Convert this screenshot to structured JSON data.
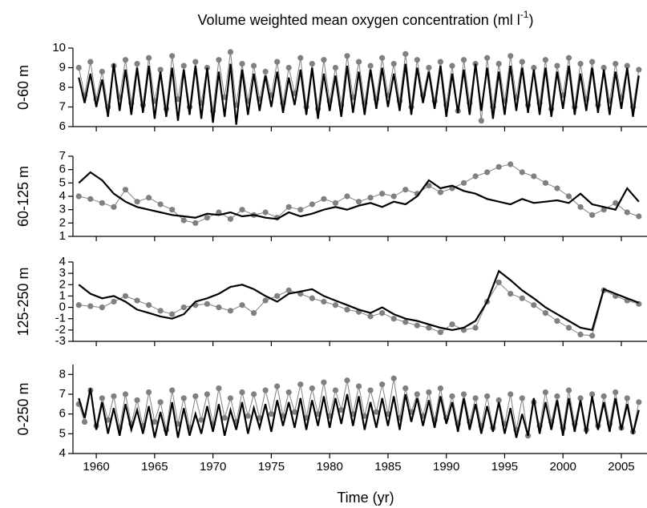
{
  "chart_data": [
    {
      "type": "line",
      "title": [
        "Volume weighted mean oxygen concentration (ml l",
        "-1",
        ")"
      ],
      "ylabel": "0-60 m",
      "xlim": [
        1958,
        2007.2
      ],
      "ylim": [
        6,
        10
      ],
      "yticks": [
        6,
        7,
        8,
        9,
        10
      ],
      "x": [
        1958.5,
        1959,
        1959.5,
        1960,
        1960.5,
        1961,
        1961.5,
        1962,
        1962.5,
        1963,
        1963.5,
        1964,
        1964.5,
        1965,
        1965.5,
        1966,
        1966.5,
        1967,
        1967.5,
        1968,
        1968.5,
        1969,
        1969.5,
        1970,
        1970.5,
        1971,
        1971.5,
        1972,
        1972.5,
        1973,
        1973.5,
        1974,
        1974.5,
        1975,
        1975.5,
        1976,
        1976.5,
        1977,
        1977.5,
        1978,
        1978.5,
        1979,
        1979.5,
        1980,
        1980.5,
        1981,
        1981.5,
        1982,
        1982.5,
        1983,
        1983.5,
        1984,
        1984.5,
        1985,
        1985.5,
        1986,
        1986.5,
        1987,
        1987.5,
        1988,
        1988.5,
        1989,
        1989.5,
        1990,
        1990.5,
        1991,
        1991.5,
        1992,
        1992.5,
        1993,
        1993.5,
        1994,
        1994.5,
        1995,
        1995.5,
        1996,
        1996.5,
        1997,
        1997.5,
        1998,
        1998.5,
        1999,
        1999.5,
        2000,
        2000.5,
        2001,
        2001.5,
        2002,
        2002.5,
        2003,
        2003.5,
        2004,
        2004.5,
        2005,
        2005.5,
        2006,
        2006.5
      ],
      "series": [
        {
          "color": "#808080",
          "marker": true,
          "values": [
            9.0,
            7.6,
            9.3,
            7.4,
            8.8,
            7.0,
            9.1,
            7.5,
            9.4,
            7.2,
            9.2,
            7.1,
            9.5,
            7.3,
            8.9,
            6.9,
            9.6,
            7.4,
            9.1,
            7.0,
            9.3,
            7.2,
            9.0,
            6.8,
            9.4,
            7.5,
            9.8,
            7.1,
            9.2,
            7.3,
            9.1,
            7.4,
            8.8,
            7.6,
            9.3,
            7.2,
            9.0,
            7.7,
            9.5,
            7.0,
            9.2,
            6.9,
            9.4,
            7.3,
            9.0,
            7.1,
            9.6,
            7.5,
            9.3,
            7.2,
            9.1,
            7.4,
            9.5,
            7.6,
            9.2,
            7.3,
            9.7,
            7.0,
            9.4,
            7.6,
            9.0,
            7.3,
            9.3,
            7.1,
            9.1,
            6.8,
            9.4,
            7.2,
            9.2,
            6.3,
            9.5,
            7.0,
            9.2,
            7.3,
            9.6,
            7.5,
            9.3,
            7.1,
            9.0,
            7.2,
            9.4,
            6.9,
            9.1,
            7.6,
            9.5,
            7.0,
            9.2,
            7.4,
            9.3,
            7.1,
            9.0,
            7.3,
            9.2,
            7.5,
            9.1,
            7.0,
            8.9
          ]
        },
        {
          "color": "#000000",
          "marker": false,
          "values": [
            8.5,
            7.2,
            8.7,
            7.0,
            8.4,
            6.5,
            9.2,
            6.8,
            8.9,
            6.6,
            9.0,
            6.7,
            9.1,
            6.4,
            8.8,
            6.5,
            9.0,
            6.3,
            8.9,
            6.6,
            9.1,
            6.4,
            9.0,
            6.2,
            8.8,
            6.5,
            9.2,
            6.1,
            8.9,
            6.6,
            8.7,
            6.8,
            8.6,
            7.0,
            8.8,
            6.7,
            8.5,
            7.1,
            8.9,
            6.6,
            9.0,
            6.4,
            8.7,
            6.8,
            8.6,
            6.5,
            9.1,
            6.7,
            8.8,
            6.6,
            8.9,
            6.9,
            9.0,
            7.0,
            8.7,
            6.8,
            9.2,
            6.6,
            9.0,
            7.2,
            8.8,
            6.9,
            9.1,
            6.5,
            8.7,
            6.7,
            8.9,
            6.6,
            9.2,
            6.8,
            9.0,
            6.4,
            8.8,
            6.6,
            9.1,
            6.8,
            9.0,
            6.7,
            8.9,
            6.6,
            9.0,
            6.5,
            8.8,
            6.9,
            9.1,
            6.6,
            8.7,
            6.8,
            9.0,
            6.7,
            8.9,
            6.6,
            8.8,
            6.9,
            9.0,
            6.5,
            8.6
          ]
        }
      ]
    },
    {
      "type": "line",
      "ylabel": "60-125 m",
      "xlim": [
        1958,
        2007.2
      ],
      "ylim": [
        1,
        7
      ],
      "yticks": [
        1,
        2,
        3,
        4,
        5,
        6,
        7
      ],
      "x": [
        1958.5,
        1959.5,
        1960.5,
        1961.5,
        1962.5,
        1963.5,
        1964.5,
        1965.5,
        1966.5,
        1967.5,
        1968.5,
        1969.5,
        1970.5,
        1971.5,
        1972.5,
        1973.5,
        1974.5,
        1975.5,
        1976.5,
        1977.5,
        1978.5,
        1979.5,
        1980.5,
        1981.5,
        1982.5,
        1983.5,
        1984.5,
        1985.5,
        1986.5,
        1987.5,
        1988.5,
        1989.5,
        1990.5,
        1991.5,
        1992.5,
        1993.5,
        1994.5,
        1995.5,
        1996.5,
        1997.5,
        1998.5,
        1999.5,
        2000.5,
        2001.5,
        2002.5,
        2003.5,
        2004.5,
        2005.5,
        2006.5
      ],
      "series": [
        {
          "color": "#808080",
          "marker": true,
          "values": [
            4.0,
            3.8,
            3.5,
            3.2,
            4.5,
            3.6,
            3.9,
            3.4,
            3.0,
            2.2,
            2.0,
            2.4,
            2.8,
            2.3,
            3.0,
            2.6,
            2.8,
            2.4,
            3.2,
            3.0,
            3.4,
            3.8,
            3.5,
            4.0,
            3.6,
            3.9,
            4.2,
            4.0,
            4.5,
            4.2,
            4.8,
            4.3,
            4.6,
            5.0,
            5.5,
            5.8,
            6.2,
            6.4,
            5.8,
            5.5,
            5.0,
            4.6,
            4.0,
            3.2,
            2.6,
            3.0,
            3.5,
            2.8,
            2.5
          ]
        },
        {
          "color": "#000000",
          "marker": false,
          "values": [
            5.0,
            5.8,
            5.2,
            4.2,
            3.6,
            3.2,
            3.0,
            2.8,
            2.6,
            2.5,
            2.4,
            2.7,
            2.6,
            2.8,
            2.5,
            2.6,
            2.4,
            2.3,
            2.8,
            2.5,
            2.7,
            3.0,
            3.2,
            3.0,
            3.3,
            3.5,
            3.2,
            3.6,
            3.4,
            4.0,
            5.2,
            4.6,
            4.8,
            4.4,
            4.2,
            3.8,
            3.6,
            3.4,
            3.8,
            3.5,
            3.6,
            3.7,
            3.5,
            4.2,
            3.4,
            3.2,
            3.0,
            4.6,
            3.6
          ]
        }
      ]
    },
    {
      "type": "line",
      "ylabel": "125-250 m",
      "xlim": [
        1958,
        2007.2
      ],
      "ylim": [
        -3,
        4
      ],
      "yticks": [
        -3,
        -2,
        -1,
        0,
        1,
        2,
        3,
        4
      ],
      "x": [
        1958.5,
        1959.5,
        1960.5,
        1961.5,
        1962.5,
        1963.5,
        1964.5,
        1965.5,
        1966.5,
        1967.5,
        1968.5,
        1969.5,
        1970.5,
        1971.5,
        1972.5,
        1973.5,
        1974.5,
        1975.5,
        1976.5,
        1977.5,
        1978.5,
        1979.5,
        1980.5,
        1981.5,
        1982.5,
        1983.5,
        1984.5,
        1985.5,
        1986.5,
        1987.5,
        1988.5,
        1989.5,
        1990.5,
        1991.5,
        1992.5,
        1993.5,
        1994.5,
        1995.5,
        1996.5,
        1997.5,
        1998.5,
        1999.5,
        2000.5,
        2001.5,
        2002.5,
        2003.5,
        2004.5,
        2005.5,
        2006.5
      ],
      "series": [
        {
          "color": "#808080",
          "marker": true,
          "values": [
            0.2,
            0.1,
            0.0,
            0.5,
            1.0,
            0.6,
            0.2,
            -0.3,
            -0.6,
            0.0,
            0.2,
            0.3,
            0.0,
            -0.3,
            0.2,
            -0.5,
            0.6,
            1.0,
            1.5,
            1.2,
            0.8,
            0.5,
            0.2,
            -0.2,
            -0.4,
            -0.8,
            -0.5,
            -1.0,
            -1.3,
            -1.6,
            -1.8,
            -2.2,
            -1.5,
            -2.0,
            -1.8,
            0.5,
            2.2,
            1.2,
            0.8,
            0.2,
            -0.5,
            -1.2,
            -1.8,
            -2.4,
            -2.5,
            1.5,
            1.0,
            0.6,
            0.3
          ]
        },
        {
          "color": "#000000",
          "marker": false,
          "values": [
            2.0,
            1.2,
            0.8,
            1.0,
            0.5,
            -0.2,
            -0.5,
            -0.8,
            -1.0,
            -0.6,
            0.5,
            0.8,
            1.2,
            1.8,
            2.0,
            1.6,
            1.0,
            0.5,
            1.2,
            1.4,
            1.6,
            1.0,
            0.6,
            0.2,
            -0.2,
            -0.5,
            0.0,
            -0.6,
            -1.0,
            -1.2,
            -1.5,
            -1.8,
            -2.0,
            -1.8,
            -1.2,
            0.5,
            3.2,
            2.4,
            1.5,
            0.8,
            0.0,
            -0.6,
            -1.2,
            -1.8,
            -2.0,
            1.6,
            1.2,
            0.8,
            0.4
          ]
        }
      ]
    },
    {
      "type": "line",
      "ylabel": "0-250 m",
      "xlabel": "Time (yr)",
      "xlim": [
        1958,
        2007.2
      ],
      "xticks": [
        1960,
        1965,
        1970,
        1975,
        1980,
        1985,
        1990,
        1995,
        2000,
        2005
      ],
      "ylim": [
        4,
        8.5
      ],
      "yticks": [
        4,
        5,
        6,
        7,
        8
      ],
      "x": [
        1958.5,
        1959,
        1959.5,
        1960,
        1960.5,
        1961,
        1961.5,
        1962,
        1962.5,
        1963,
        1963.5,
        1964,
        1964.5,
        1965,
        1965.5,
        1966,
        1966.5,
        1967,
        1967.5,
        1968,
        1968.5,
        1969,
        1969.5,
        1970,
        1970.5,
        1971,
        1971.5,
        1972,
        1972.5,
        1973,
        1973.5,
        1974,
        1974.5,
        1975,
        1975.5,
        1976,
        1976.5,
        1977,
        1977.5,
        1978,
        1978.5,
        1979,
        1979.5,
        1980,
        1980.5,
        1981,
        1981.5,
        1982,
        1982.5,
        1983,
        1983.5,
        1984,
        1984.5,
        1985,
        1985.5,
        1986,
        1986.5,
        1987,
        1987.5,
        1988,
        1988.5,
        1989,
        1989.5,
        1990,
        1990.5,
        1991,
        1991.5,
        1992,
        1992.5,
        1993,
        1993.5,
        1994,
        1994.5,
        1995,
        1995.5,
        1996,
        1996.5,
        1997,
        1997.5,
        1998,
        1998.5,
        1999,
        1999.5,
        2000,
        2000.5,
        2001,
        2001.5,
        2002,
        2002.5,
        2003,
        2003.5,
        2004,
        2004.5,
        2005,
        2005.5,
        2006,
        2006.5
      ],
      "series": [
        {
          "color": "#808080",
          "marker": true,
          "values": [
            6.5,
            5.6,
            7.2,
            5.4,
            6.8,
            5.7,
            6.9,
            5.3,
            7.0,
            5.5,
            6.7,
            5.4,
            7.1,
            5.6,
            6.6,
            5.2,
            7.2,
            5.5,
            6.8,
            5.3,
            6.9,
            5.7,
            7.0,
            5.5,
            7.3,
            5.8,
            6.8,
            5.6,
            7.1,
            5.9,
            7.0,
            5.8,
            7.2,
            6.0,
            7.4,
            5.9,
            7.1,
            6.1,
            7.5,
            5.8,
            7.3,
            6.0,
            7.6,
            5.9,
            7.2,
            6.2,
            7.7,
            6.0,
            7.4,
            5.9,
            7.2,
            6.1,
            7.5,
            6.0,
            7.8,
            5.8,
            7.3,
            6.1,
            7.0,
            5.9,
            7.1,
            5.7,
            7.3,
            5.8,
            6.9,
            5.5,
            7.0,
            5.6,
            6.8,
            5.4,
            6.9,
            5.3,
            6.7,
            5.5,
            7.0,
            5.2,
            6.8,
            4.9,
            6.6,
            5.4,
            7.1,
            5.6,
            6.9,
            5.3,
            7.2,
            5.5,
            6.8,
            5.2,
            7.0,
            5.4,
            6.9,
            5.5,
            7.1,
            5.3,
            6.8,
            5.1,
            6.6
          ]
        },
        {
          "color": "#000000",
          "marker": false,
          "values": [
            6.8,
            5.8,
            7.3,
            5.2,
            6.6,
            5.0,
            6.3,
            4.9,
            6.5,
            5.2,
            6.2,
            5.0,
            6.4,
            4.8,
            6.1,
            4.9,
            6.6,
            4.8,
            6.3,
            4.9,
            6.0,
            5.0,
            6.4,
            5.1,
            6.5,
            4.9,
            6.2,
            5.2,
            6.6,
            5.0,
            6.3,
            5.3,
            6.5,
            5.1,
            6.7,
            5.4,
            6.6,
            5.3,
            6.8,
            5.2,
            6.7,
            5.4,
            6.9,
            5.3,
            6.8,
            5.5,
            7.0,
            5.4,
            6.9,
            5.2,
            6.6,
            5.3,
            6.8,
            5.4,
            6.9,
            5.2,
            7.0,
            5.6,
            6.8,
            5.4,
            6.7,
            5.3,
            6.9,
            5.5,
            6.6,
            5.1,
            6.8,
            5.2,
            6.5,
            5.0,
            6.4,
            5.1,
            6.6,
            5.0,
            6.3,
            4.8,
            6.0,
            4.9,
            6.8,
            5.0,
            6.6,
            5.2,
            6.7,
            4.9,
            6.8,
            5.1,
            6.7,
            5.0,
            6.9,
            5.2,
            6.6,
            5.1,
            6.8,
            5.2,
            6.5,
            5.0,
            6.2
          ]
        }
      ]
    }
  ]
}
